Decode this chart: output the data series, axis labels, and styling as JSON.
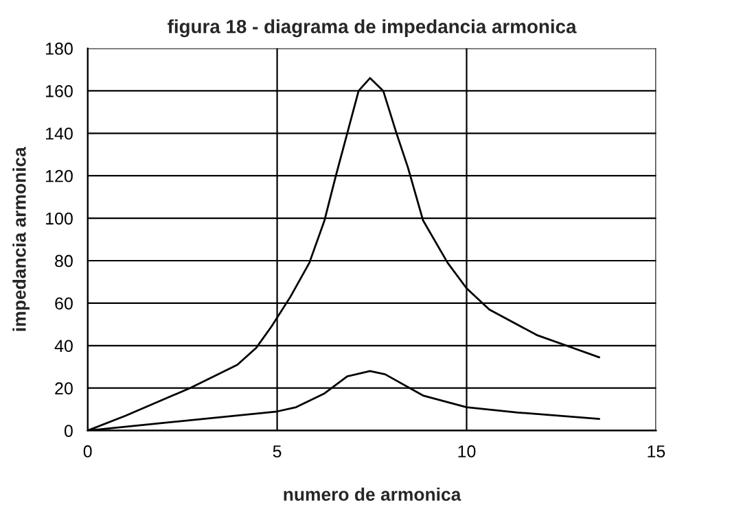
{
  "chart_data": {
    "type": "line",
    "title": "figura 18 - diagrama de impedancia armonica",
    "xlabel": "numero de armonica",
    "ylabel": "impedancia armonica",
    "series": [
      {
        "color": "#000000",
        "x": [
          0,
          1.0,
          2.7,
          3.95,
          4.45,
          4.85,
          5.35,
          5.85,
          6.25,
          6.55,
          6.85,
          7.15,
          7.45,
          7.8,
          8.15,
          8.45,
          8.85,
          9.5,
          10.0,
          10.6,
          11.85,
          13.5
        ],
        "values": [
          0,
          7,
          20,
          31,
          39,
          49,
          63,
          79,
          99,
          120,
          140,
          160,
          166,
          160,
          140,
          124,
          99,
          79,
          67,
          57,
          45,
          34.5
        ]
      },
      {
        "color": "#000000",
        "x": [
          0,
          5.0,
          5.5,
          6.25,
          6.85,
          7.45,
          7.85,
          8.85,
          10.0,
          11.35,
          13.5
        ],
        "values": [
          0,
          9,
          11,
          17.5,
          25.5,
          28,
          26.5,
          16.5,
          11,
          8.5,
          5.5
        ]
      }
    ],
    "xlim": [
      0,
      15
    ],
    "xticks": [
      0,
      5,
      10,
      15
    ],
    "ylim": [
      0,
      180
    ],
    "yticks": [
      0,
      20,
      40,
      60,
      80,
      100,
      120,
      140,
      160,
      180
    ],
    "grid": true,
    "marker": "none",
    "line_style": "solid"
  }
}
